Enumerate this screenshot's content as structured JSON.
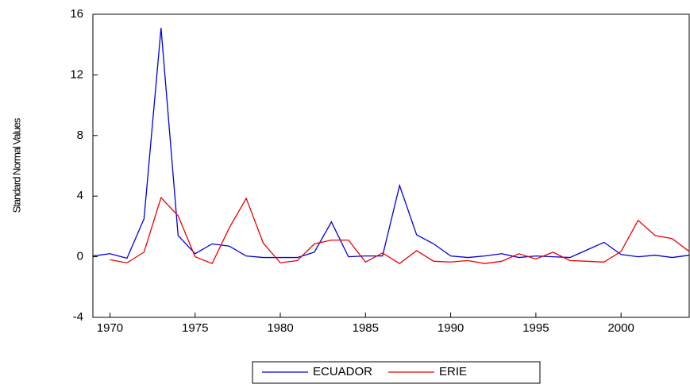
{
  "chart_data": {
    "type": "line",
    "y_label": "Standard Normal Values",
    "x": [
      1969,
      1970,
      1971,
      1972,
      1973,
      1974,
      1975,
      1976,
      1977,
      1978,
      1979,
      1980,
      1981,
      1982,
      1983,
      1984,
      1985,
      1986,
      1987,
      1988,
      1989,
      1990,
      1991,
      1992,
      1993,
      1994,
      1995,
      1996,
      1997,
      1998,
      1999,
      2000,
      2001,
      2002,
      2003,
      2004
    ],
    "series": [
      {
        "name": "ECUADOR",
        "color": "#0000dd",
        "values": [
          0.05,
          0.2,
          -0.1,
          2.5,
          15.1,
          1.4,
          0.2,
          0.85,
          0.7,
          0.05,
          -0.05,
          -0.05,
          -0.05,
          0.3,
          2.3,
          0.0,
          0.05,
          0.05,
          4.7,
          1.45,
          0.85,
          0.05,
          -0.05,
          0.05,
          0.2,
          -0.05,
          0.05,
          0.0,
          -0.05,
          0.45,
          0.95,
          0.15,
          0.0,
          0.1,
          -0.05,
          0.1
        ]
      },
      {
        "name": "ERIE",
        "color": "#ee0000",
        "values": [
          null,
          -0.2,
          -0.4,
          0.3,
          3.9,
          2.7,
          0.0,
          -0.45,
          1.9,
          3.85,
          0.9,
          -0.4,
          -0.25,
          0.85,
          1.1,
          1.1,
          -0.35,
          0.25,
          -0.45,
          0.4,
          -0.3,
          -0.35,
          -0.25,
          -0.45,
          -0.3,
          0.2,
          -0.15,
          0.3,
          -0.25,
          -0.3,
          -0.35,
          0.35,
          2.4,
          1.4,
          1.2,
          0.35
        ]
      }
    ],
    "xlim": [
      1969,
      2004
    ],
    "xticks": [
      1970,
      1975,
      1980,
      1985,
      1990,
      1995,
      2000
    ],
    "ylim": [
      -4,
      16
    ],
    "yticks": [
      -4,
      0,
      4,
      8,
      12,
      16
    ],
    "legend": "bottom"
  }
}
